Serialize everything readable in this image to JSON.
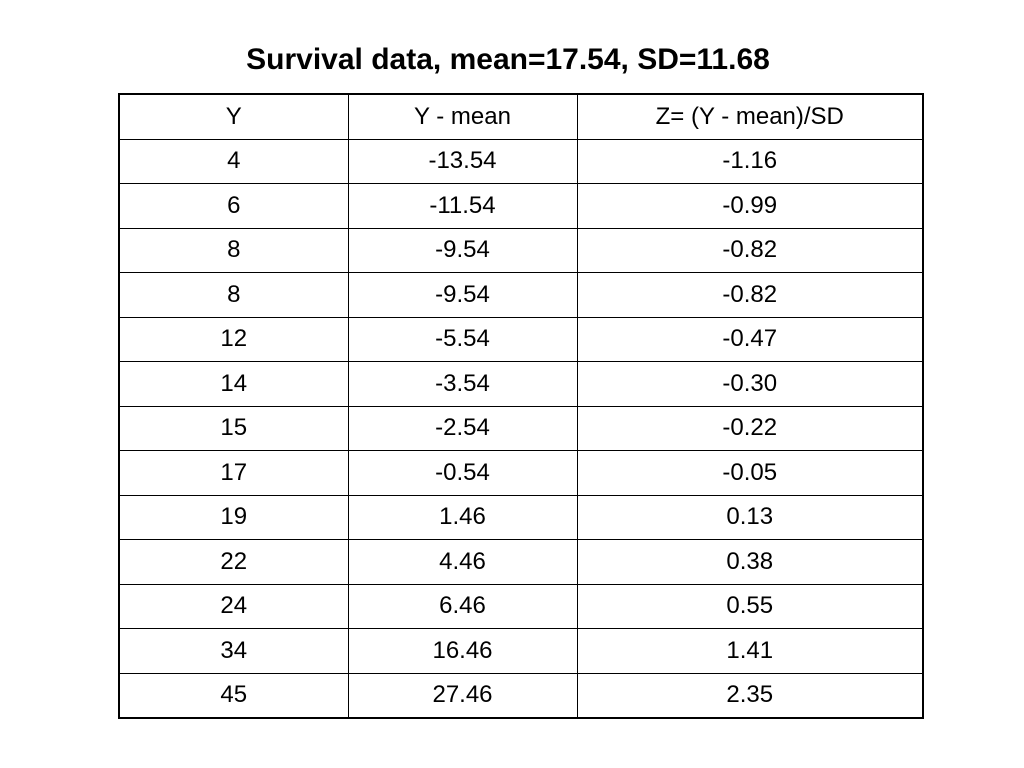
{
  "title": "Survival data, mean=17.54, SD=11.68",
  "table": {
    "headers": [
      "Y",
      "Y - mean",
      "Z= (Y - mean)/SD"
    ],
    "rows": [
      [
        "4",
        "-13.54",
        "-1.16"
      ],
      [
        "6",
        "-11.54",
        "-0.99"
      ],
      [
        "8",
        "-9.54",
        "-0.82"
      ],
      [
        "8",
        "-9.54",
        "-0.82"
      ],
      [
        "12",
        "-5.54",
        "-0.47"
      ],
      [
        "14",
        "-3.54",
        "-0.30"
      ],
      [
        "15",
        "-2.54",
        "-0.22"
      ],
      [
        "17",
        "-0.54",
        "-0.05"
      ],
      [
        "19",
        "1.46",
        "0.13"
      ],
      [
        "22",
        "4.46",
        "0.38"
      ],
      [
        "24",
        "6.46",
        "0.55"
      ],
      [
        "34",
        "16.46",
        "1.41"
      ],
      [
        "45",
        "27.46",
        "2.35"
      ]
    ]
  }
}
